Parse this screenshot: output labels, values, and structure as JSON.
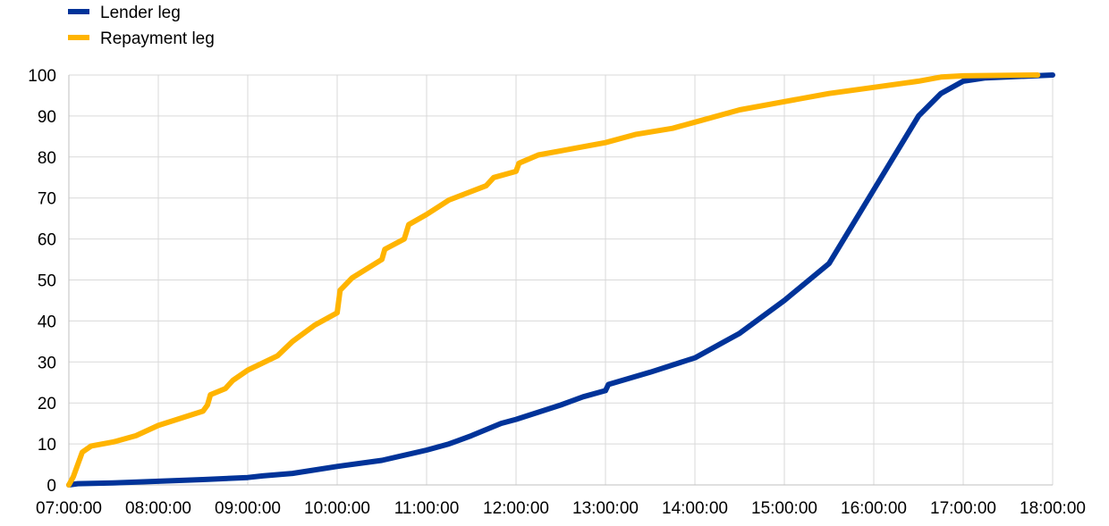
{
  "chart_data": {
    "type": "line",
    "title": "",
    "xlabel": "",
    "ylabel": "",
    "ylim": [
      0,
      100
    ],
    "yticks": [
      0,
      10,
      20,
      30,
      40,
      50,
      60,
      70,
      80,
      90,
      100
    ],
    "xlim": [
      "07:00:00",
      "18:00:00"
    ],
    "xticks": [
      "07:00:00",
      "08:00:00",
      "09:00:00",
      "10:00:00",
      "11:00:00",
      "12:00:00",
      "13:00:00",
      "14:00:00",
      "15:00:00",
      "16:00:00",
      "17:00:00",
      "18:00:00"
    ],
    "grid": true,
    "legend": "top-left",
    "series": [
      {
        "name": "Lender leg",
        "color": "#003399",
        "points": [
          [
            "07:00:00",
            0
          ],
          [
            "07:06:00",
            0.3
          ],
          [
            "07:30:00",
            0.5
          ],
          [
            "08:00:00",
            0.9
          ],
          [
            "08:30:00",
            1.3
          ],
          [
            "09:00:00",
            1.8
          ],
          [
            "09:10:00",
            2.2
          ],
          [
            "09:30:00",
            2.8
          ],
          [
            "10:00:00",
            4.5
          ],
          [
            "10:30:00",
            6
          ],
          [
            "11:00:00",
            8.5
          ],
          [
            "11:15:00",
            10
          ],
          [
            "11:30:00",
            12
          ],
          [
            "11:50:00",
            15
          ],
          [
            "12:00:00",
            16
          ],
          [
            "12:30:00",
            19.5
          ],
          [
            "12:45:00",
            21.5
          ],
          [
            "13:00:00",
            23
          ],
          [
            "13:02:00",
            24.5
          ],
          [
            "13:30:00",
            27.5
          ],
          [
            "14:00:00",
            31
          ],
          [
            "14:30:00",
            37
          ],
          [
            "15:00:00",
            45
          ],
          [
            "15:30:00",
            54
          ],
          [
            "15:45:00",
            63
          ],
          [
            "16:00:00",
            72
          ],
          [
            "16:15:00",
            81
          ],
          [
            "16:30:00",
            90
          ],
          [
            "16:45:00",
            95.5
          ],
          [
            "17:00:00",
            98.5
          ],
          [
            "17:15:00",
            99.3
          ],
          [
            "18:00:00",
            100
          ]
        ]
      },
      {
        "name": "Repayment leg",
        "color": "#ffb400",
        "points": [
          [
            "07:00:00",
            0
          ],
          [
            "07:03:00",
            2
          ],
          [
            "07:06:00",
            5
          ],
          [
            "07:09:00",
            8
          ],
          [
            "07:15:00",
            9.5
          ],
          [
            "07:30:00",
            10.5
          ],
          [
            "07:45:00",
            12
          ],
          [
            "08:00:00",
            14.5
          ],
          [
            "08:30:00",
            18
          ],
          [
            "08:33:00",
            19.5
          ],
          [
            "08:35:00",
            22
          ],
          [
            "08:45:00",
            23.5
          ],
          [
            "08:50:00",
            25.5
          ],
          [
            "09:00:00",
            28
          ],
          [
            "09:20:00",
            31.5
          ],
          [
            "09:30:00",
            35
          ],
          [
            "09:45:00",
            39
          ],
          [
            "10:00:00",
            42
          ],
          [
            "10:02:00",
            47.5
          ],
          [
            "10:10:00",
            50.5
          ],
          [
            "10:30:00",
            55
          ],
          [
            "10:32:00",
            57.5
          ],
          [
            "10:45:00",
            60
          ],
          [
            "10:48:00",
            63.5
          ],
          [
            "11:00:00",
            66
          ],
          [
            "11:15:00",
            69.5
          ],
          [
            "11:40:00",
            73
          ],
          [
            "11:45:00",
            75
          ],
          [
            "12:00:00",
            76.5
          ],
          [
            "12:02:00",
            78.5
          ],
          [
            "12:15:00",
            80.5
          ],
          [
            "12:30:00",
            81.5
          ],
          [
            "13:00:00",
            83.5
          ],
          [
            "13:20:00",
            85.5
          ],
          [
            "13:45:00",
            87
          ],
          [
            "14:00:00",
            88.5
          ],
          [
            "14:30:00",
            91.5
          ],
          [
            "15:00:00",
            93.5
          ],
          [
            "15:30:00",
            95.5
          ],
          [
            "16:00:00",
            97
          ],
          [
            "16:30:00",
            98.5
          ],
          [
            "16:45:00",
            99.5
          ],
          [
            "17:00:00",
            99.8
          ],
          [
            "17:50:00",
            100
          ]
        ]
      }
    ]
  }
}
